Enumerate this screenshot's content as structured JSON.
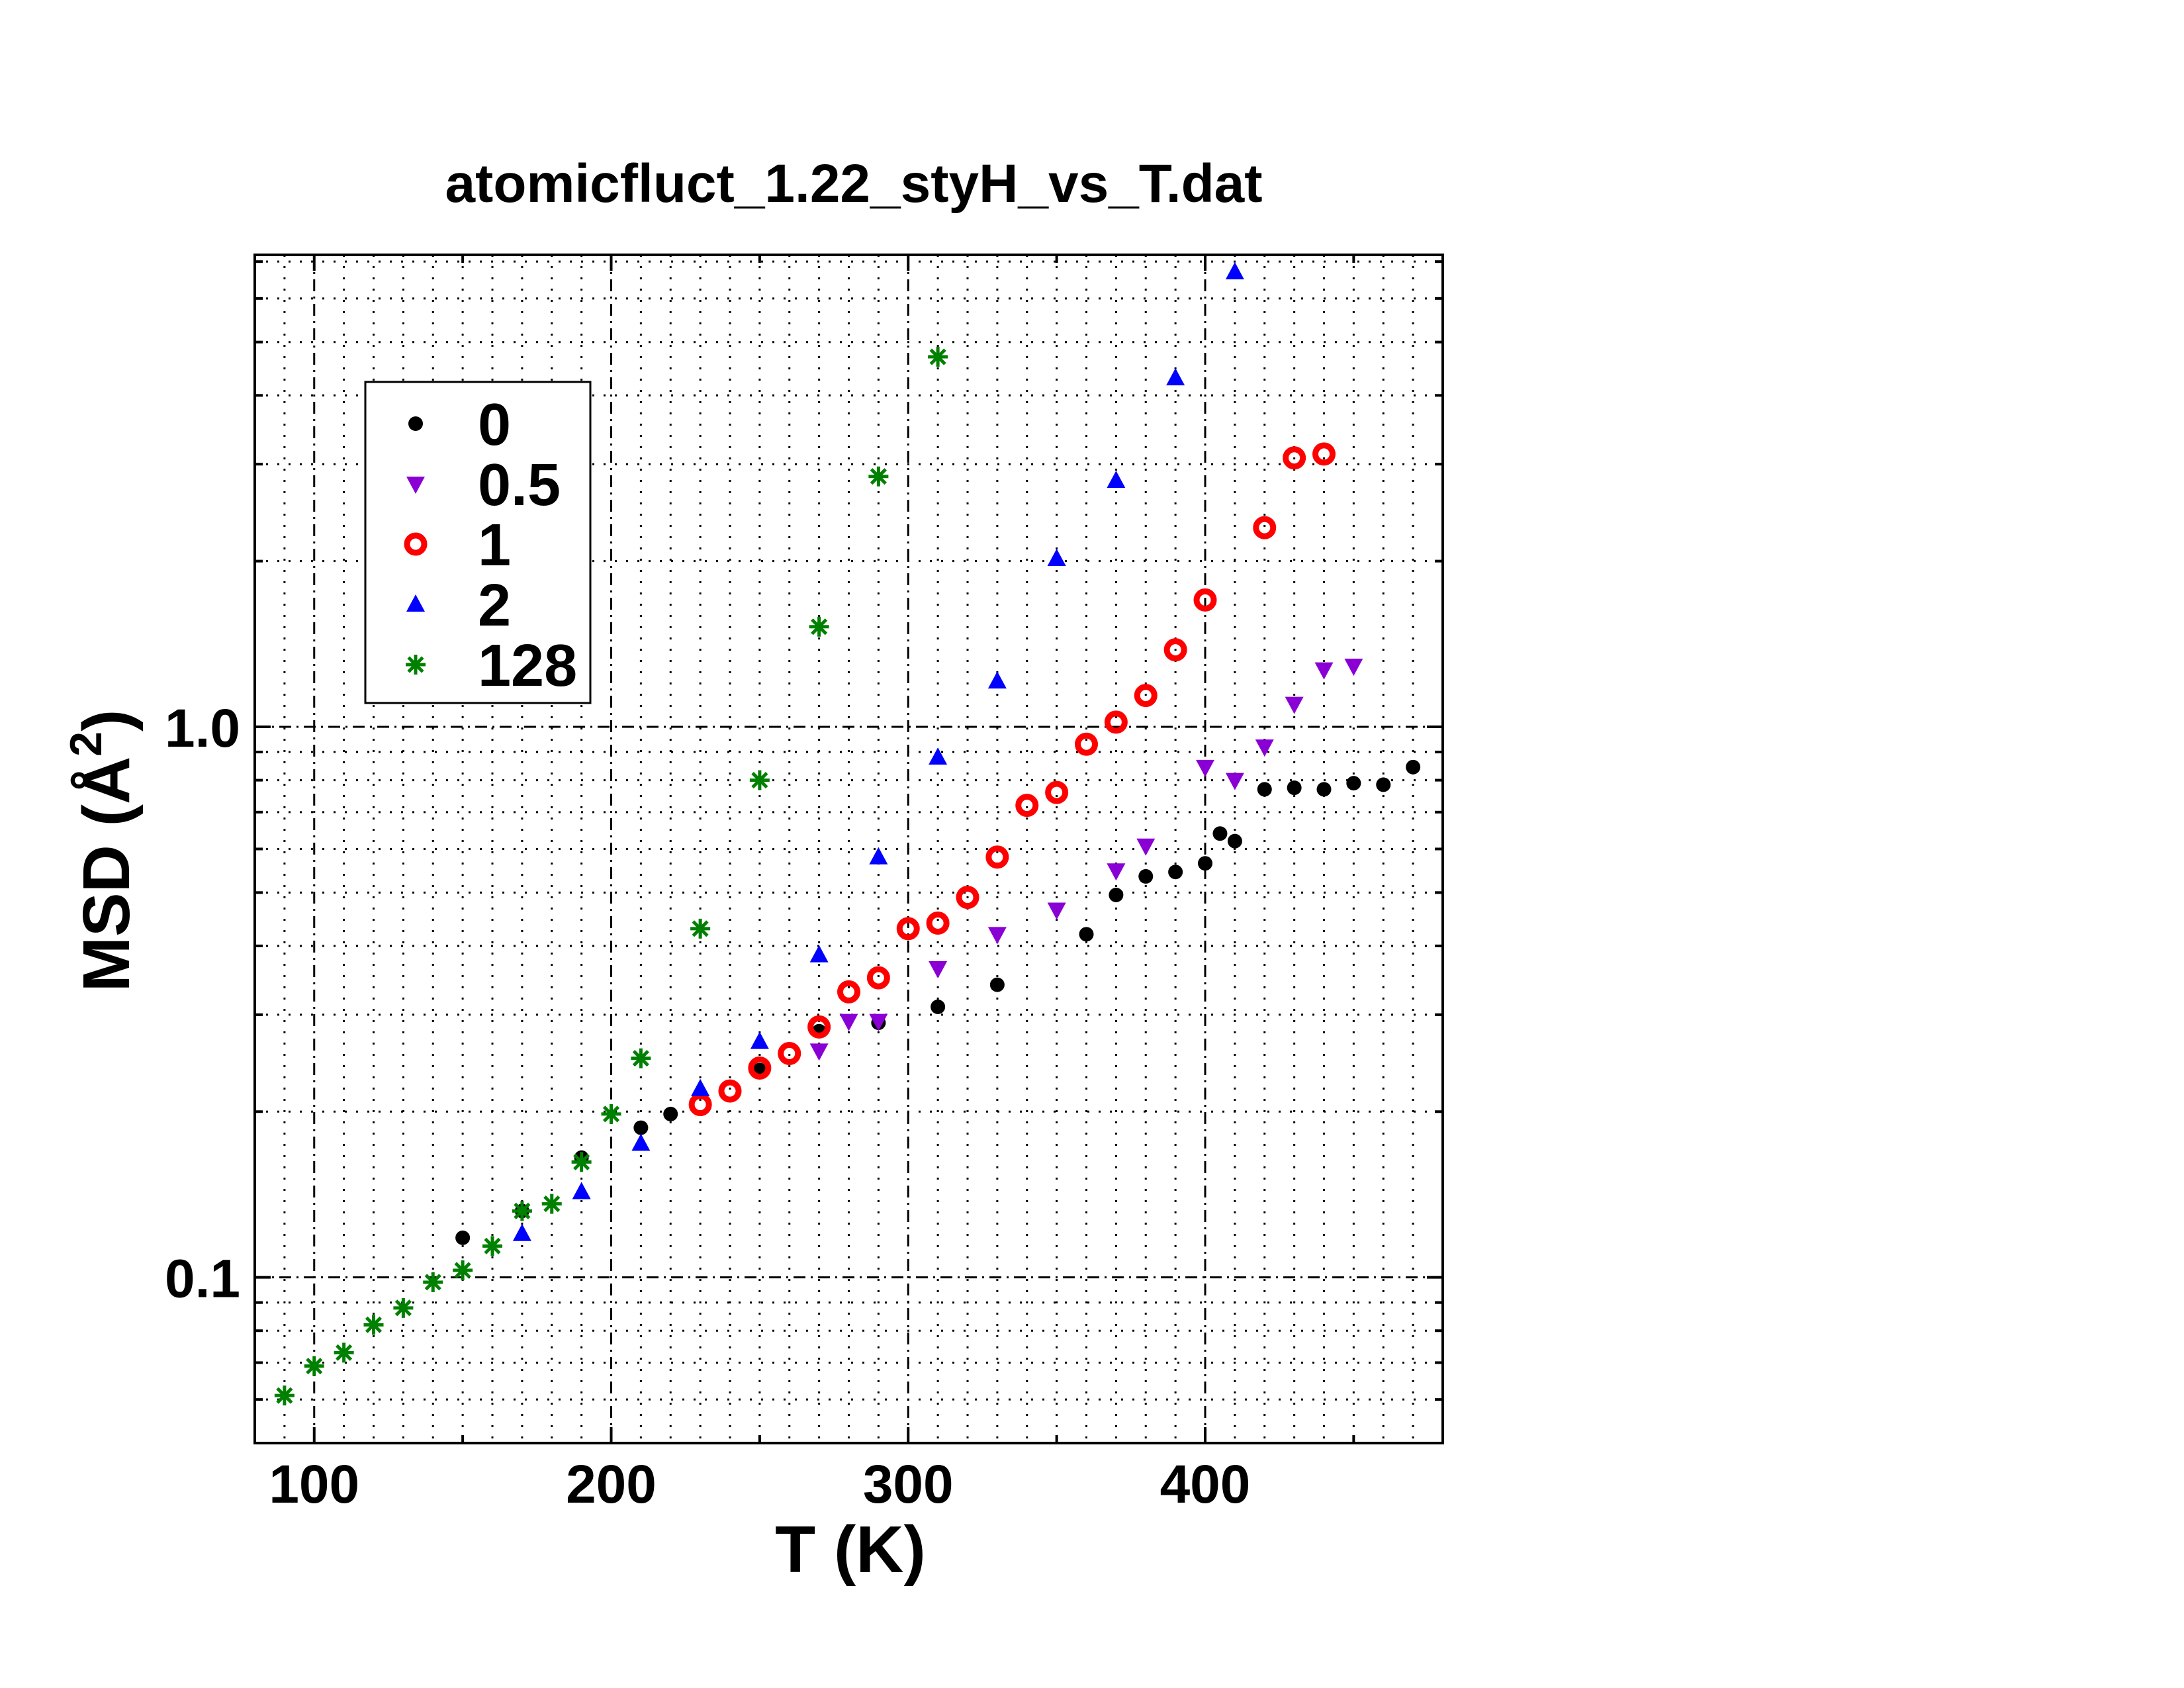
{
  "chart_data": {
    "type": "scatter",
    "title": "atomicfluct_1.22_styH_vs_T.dat",
    "xlabel": "T (K)",
    "ylabel_main": "MSD (Å",
    "ylabel_sup": "2",
    "ylabel_close": ")",
    "xlim": [
      80,
      480
    ],
    "ylim": [
      0.05,
      7.2
    ],
    "yscale": "log",
    "grid": true,
    "legend_position": "top-left",
    "x_ticks": [
      100,
      200,
      300,
      400
    ],
    "x_tick_labels": [
      "100",
      "200",
      "300",
      "400"
    ],
    "y_ticks": [
      0.1,
      1.0
    ],
    "y_tick_labels": [
      "0.1",
      "1.0"
    ],
    "series": [
      {
        "name": "0",
        "marker": "circle",
        "color": "#000000",
        "points": [
          [
            150,
            0.118
          ],
          [
            170,
            0.132
          ],
          [
            190,
            0.165
          ],
          [
            210,
            0.187
          ],
          [
            220,
            0.198
          ],
          [
            250,
            0.238
          ],
          [
            270,
            0.28
          ],
          [
            290,
            0.29
          ],
          [
            310,
            0.31
          ],
          [
            330,
            0.34
          ],
          [
            360,
            0.42
          ],
          [
            370,
            0.495
          ],
          [
            380,
            0.535
          ],
          [
            390,
            0.545
          ],
          [
            400,
            0.565
          ],
          [
            405,
            0.64
          ],
          [
            410,
            0.62
          ],
          [
            420,
            0.77
          ],
          [
            430,
            0.775
          ],
          [
            440,
            0.77
          ],
          [
            450,
            0.79
          ],
          [
            460,
            0.785
          ],
          [
            470,
            0.845
          ]
        ]
      },
      {
        "name": "0.5",
        "marker": "triangle-down",
        "color": "#8a00d4",
        "points": [
          [
            270,
            0.258
          ],
          [
            280,
            0.292
          ],
          [
            290,
            0.292
          ],
          [
            310,
            0.364
          ],
          [
            330,
            0.42
          ],
          [
            350,
            0.465
          ],
          [
            370,
            0.548
          ],
          [
            380,
            0.608
          ],
          [
            400,
            0.845
          ],
          [
            410,
            0.8
          ],
          [
            420,
            0.92
          ],
          [
            430,
            1.1
          ],
          [
            440,
            1.27
          ],
          [
            450,
            1.29
          ]
        ]
      },
      {
        "name": "1",
        "marker": "ring",
        "color": "#ff0000",
        "points": [
          [
            230,
            0.206
          ],
          [
            240,
            0.218
          ],
          [
            250,
            0.24
          ],
          [
            260,
            0.255
          ],
          [
            270,
            0.285
          ],
          [
            280,
            0.33
          ],
          [
            290,
            0.35
          ],
          [
            300,
            0.43
          ],
          [
            310,
            0.44
          ],
          [
            320,
            0.49
          ],
          [
            330,
            0.58
          ],
          [
            340,
            0.72
          ],
          [
            350,
            0.76
          ],
          [
            360,
            0.93
          ],
          [
            370,
            1.02
          ],
          [
            380,
            1.14
          ],
          [
            390,
            1.38
          ],
          [
            400,
            1.7
          ],
          [
            420,
            2.3
          ],
          [
            430,
            3.08
          ],
          [
            440,
            3.13
          ]
        ]
      },
      {
        "name": "2",
        "marker": "triangle-up",
        "color": "#0000ff",
        "points": [
          [
            170,
            0.12
          ],
          [
            190,
            0.143
          ],
          [
            210,
            0.175
          ],
          [
            230,
            0.22
          ],
          [
            250,
            0.268
          ],
          [
            270,
            0.385
          ],
          [
            290,
            0.58
          ],
          [
            310,
            0.88
          ],
          [
            330,
            1.21
          ],
          [
            350,
            2.02
          ],
          [
            370,
            2.8
          ],
          [
            390,
            4.3
          ],
          [
            410,
            6.7
          ]
        ]
      },
      {
        "name": "128",
        "marker": "star",
        "color": "#008000",
        "points": [
          [
            90,
            0.061
          ],
          [
            100,
            0.069
          ],
          [
            110,
            0.073
          ],
          [
            120,
            0.082
          ],
          [
            130,
            0.088
          ],
          [
            140,
            0.098
          ],
          [
            150,
            0.103
          ],
          [
            160,
            0.114
          ],
          [
            170,
            0.132
          ],
          [
            180,
            0.136
          ],
          [
            190,
            0.162
          ],
          [
            200,
            0.198
          ],
          [
            210,
            0.25
          ],
          [
            230,
            0.43
          ],
          [
            250,
            0.8
          ],
          [
            270,
            1.52
          ],
          [
            290,
            2.85
          ],
          [
            310,
            4.7
          ]
        ]
      }
    ]
  }
}
